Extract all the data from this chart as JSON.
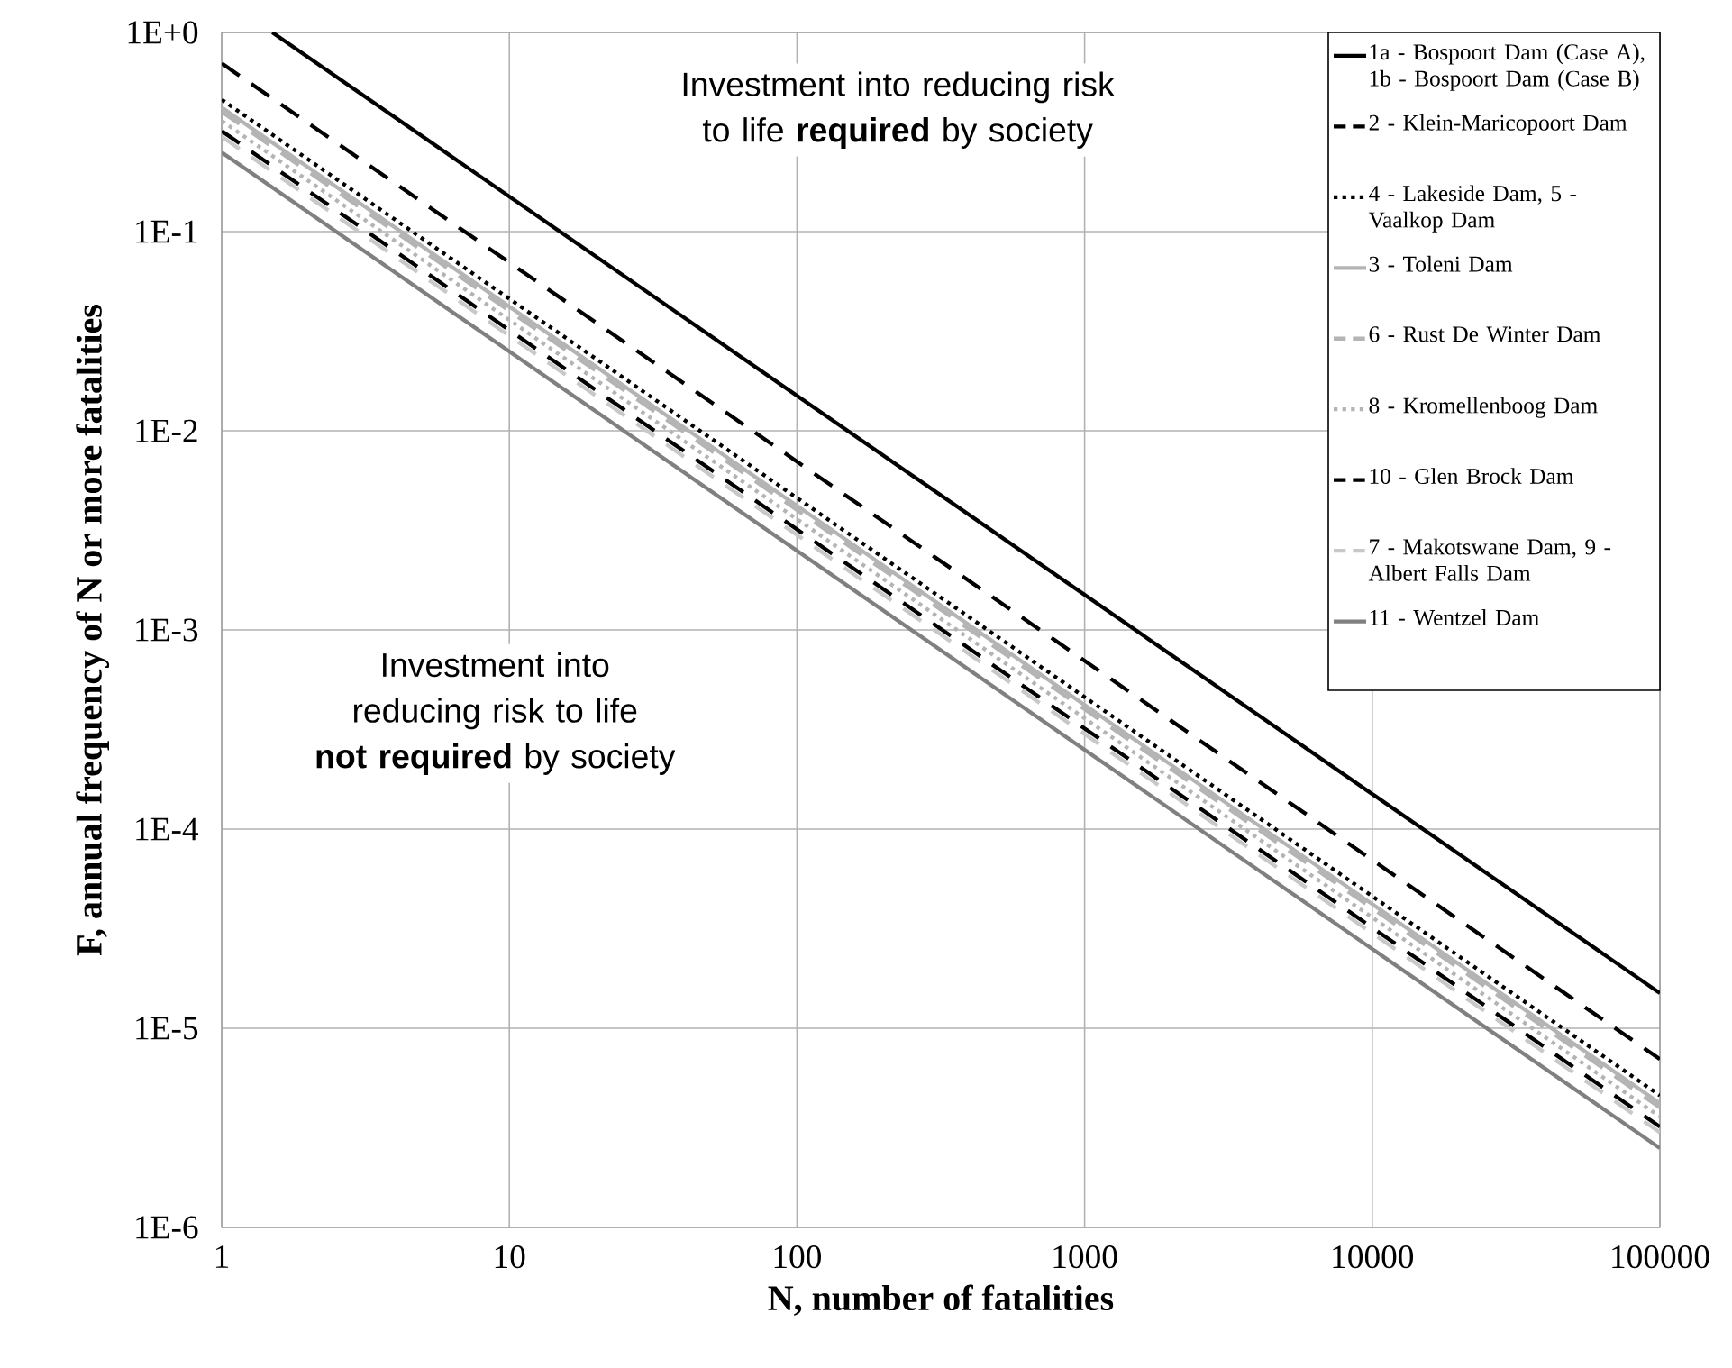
{
  "chart_data": {
    "type": "line",
    "xlabel": "N, number of fatalities",
    "ylabel": "F, annual frequency of N or more fatalities",
    "log": "xy",
    "grid": true,
    "legend": "top right",
    "xlim": [
      1,
      100000
    ],
    "ylim": [
      1e-06,
      1
    ],
    "xticks": [
      1,
      10,
      100,
      1000,
      10000,
      100000
    ],
    "yticks": [
      {
        "value": 1,
        "label": "1E+0"
      },
      {
        "value": 0.1,
        "label": "1E-1"
      },
      {
        "value": 0.01,
        "label": "1E-2"
      },
      {
        "value": 0.001,
        "label": "1E-3"
      },
      {
        "value": 0.0001,
        "label": "1E-4"
      },
      {
        "value": 1e-05,
        "label": "1E-5"
      },
      {
        "value": 1e-06,
        "label": "1E-6"
      }
    ],
    "x": [
      1,
      100000
    ],
    "series": [
      {
        "name": "1a - Bospoort Dam (Case A), 1b - Bospoort Dam (Case B)",
        "color": "#000000",
        "line_style": "solid",
        "x": [
          1.5,
          100000
        ],
        "values": [
          1,
          1.5e-05
        ]
      },
      {
        "name": "2 - Klein-Maricopoort Dam",
        "color": "#000000",
        "line_style": "dashed",
        "values": [
          0.7,
          7e-06
        ]
      },
      {
        "name": "4 - Lakeside Dam, 5 - Vaalkop Dam",
        "color": "#000000",
        "line_style": "dotted",
        "values": [
          0.46,
          4.6e-06
        ]
      },
      {
        "name": "3 - Toleni Dam",
        "color": "#b4b4b4",
        "line_style": "solid",
        "values": [
          0.42,
          4.2e-06
        ]
      },
      {
        "name": "6 - Rust De Winter Dam",
        "color": "#b4b4b4",
        "line_style": "dashed",
        "values": [
          0.4,
          4e-06
        ]
      },
      {
        "name": "8 - Kromellenboog Dam",
        "color": "#b4b4b4",
        "line_style": "dotted",
        "values": [
          0.36,
          3.6e-06
        ]
      },
      {
        "name": "10 - Glen Brock Dam",
        "color": "#000000",
        "line_style": "dashed",
        "values": [
          0.32,
          3.2e-06
        ]
      },
      {
        "name": "7 - Makotswane Dam, 9 - Albert Falls Dam",
        "color": "#c8c8c8",
        "line_style": "dashed",
        "values": [
          0.3,
          3e-06
        ]
      },
      {
        "name": "11 - Wentzel Dam",
        "color": "#808080",
        "line_style": "solid",
        "values": [
          0.25,
          2.5e-06
        ]
      }
    ],
    "annotations": [
      "Investment into reducing risk to life **required** by society",
      "Investment into reducing risk to life **not required** by society"
    ]
  }
}
